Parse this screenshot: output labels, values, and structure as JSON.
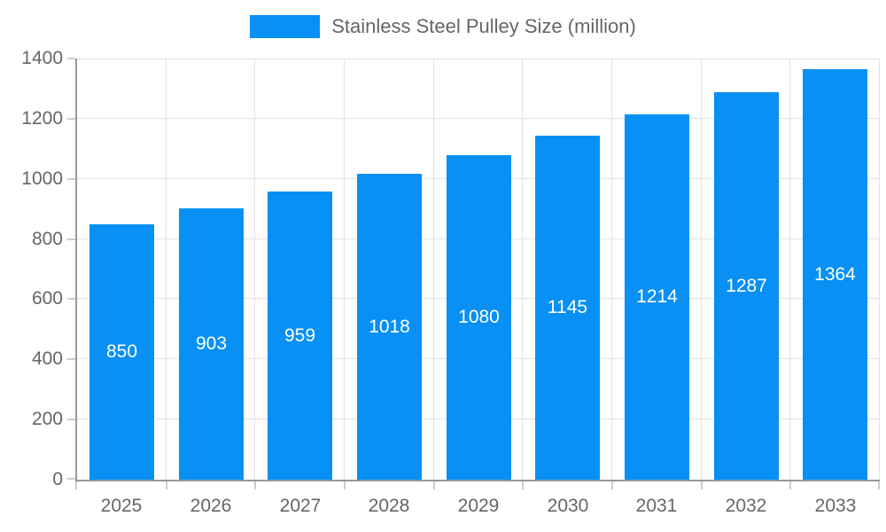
{
  "legend": {
    "label": "Stainless Steel Pulley Size (million)"
  },
  "colors": {
    "bar": "#0890f5",
    "axis_line": "#999999",
    "tick": "#cccccc",
    "gridline": "#e3e3e3",
    "axis_text": "#666666",
    "value_text": "#ffffff",
    "background": "#ffffff"
  },
  "chart_data": {
    "type": "bar",
    "title": "Stainless Steel Pulley Size (million)",
    "series": [
      {
        "name": "Stainless Steel Pulley Size (million)",
        "values": [
          850,
          903,
          959,
          1018,
          1080,
          1145,
          1214,
          1287,
          1364
        ]
      }
    ],
    "categories": [
      "2025",
      "2026",
      "2027",
      "2028",
      "2029",
      "2030",
      "2031",
      "2032",
      "2033"
    ],
    "xlabel": "",
    "ylabel": "",
    "ylim": [
      0,
      1400
    ],
    "yticks": [
      0,
      200,
      400,
      600,
      800,
      1000,
      1200,
      1400
    ],
    "grid": true,
    "vertical_grid": true,
    "legend_position": "top-center",
    "value_labels_position": "inside-center"
  }
}
